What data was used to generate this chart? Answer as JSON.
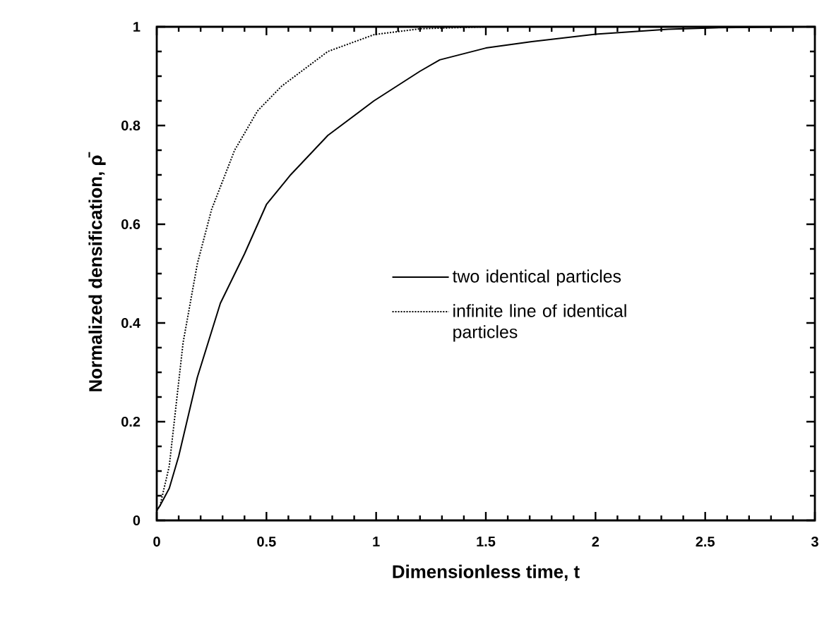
{
  "chart_data": {
    "type": "line",
    "xlabel": "Dimensionless time, t",
    "ylabel": "Normalized densification, ρ̄",
    "xlim": [
      0,
      3
    ],
    "ylim": [
      0,
      1
    ],
    "xticks": [
      0,
      0.5,
      1,
      1.5,
      2,
      2.5,
      3
    ],
    "yticks": [
      0,
      0.2,
      0.4,
      0.6,
      0.8,
      1
    ],
    "grid": false,
    "legend": "right",
    "series": [
      {
        "name": "two identical particles",
        "color": "#000000",
        "line_style": "solid",
        "x": [
          0,
          0.015,
          0.057,
          0.1,
          0.185,
          0.29,
          0.4,
          0.5,
          0.61,
          0.78,
          0.99,
          1.2,
          1.29,
          1.5,
          1.71,
          2.0,
          2.33,
          2.54,
          3.0
        ],
        "values": [
          0.02,
          0.03,
          0.065,
          0.13,
          0.29,
          0.44,
          0.54,
          0.64,
          0.7,
          0.78,
          0.85,
          0.91,
          0.933,
          0.957,
          0.97,
          0.985,
          0.995,
          0.998,
          1.0
        ]
      },
      {
        "name": "infinite line of identical particles",
        "color": "#000000",
        "line_style": "dotted",
        "x": [
          0,
          0.015,
          0.057,
          0.12,
          0.185,
          0.25,
          0.355,
          0.46,
          0.57,
          0.78,
          0.99,
          1.2,
          1.5,
          2.0
        ],
        "values": [
          0.02,
          0.03,
          0.11,
          0.36,
          0.52,
          0.63,
          0.75,
          0.83,
          0.88,
          0.95,
          0.984,
          0.996,
          1.0,
          1.0
        ]
      }
    ]
  }
}
